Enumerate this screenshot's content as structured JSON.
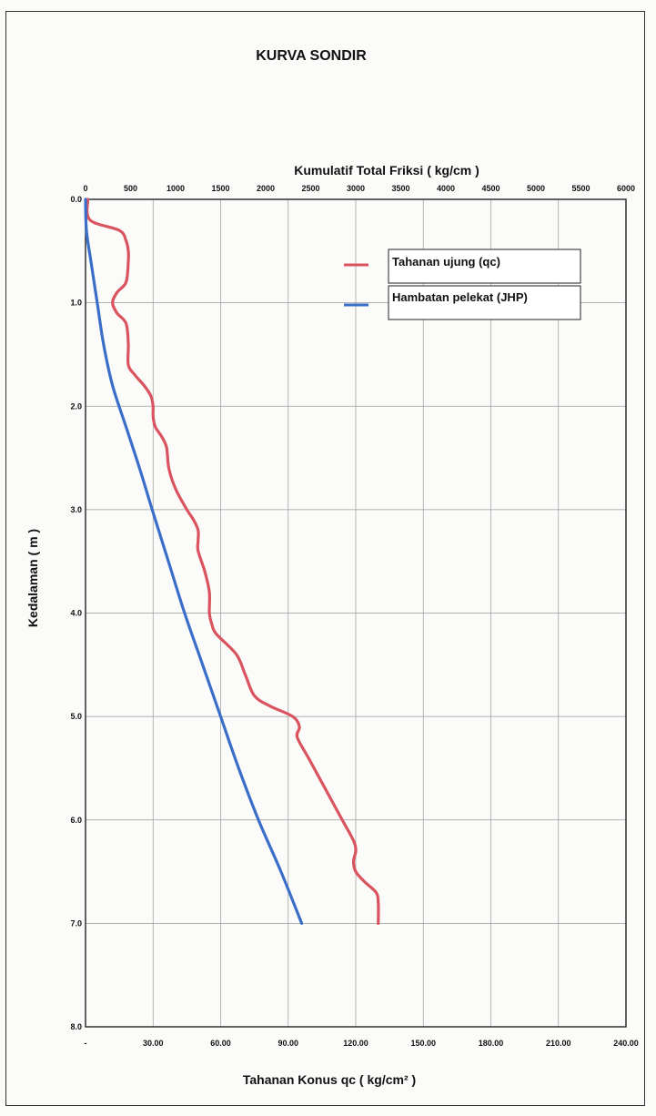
{
  "chart_data": {
    "type": "line",
    "title": "KURVA SONDIR",
    "top_axis_label": "Kumulatif Total Friksi  ( kg/cm )",
    "bottom_axis_label": "Tahanan Konus qc  ( kg/cm² )",
    "y_axis_label": "Kedalaman ( m )",
    "y_inverted": true,
    "grid": true,
    "legend_position": "top-right",
    "ylim": [
      0,
      8
    ],
    "qc_xlim": [
      0,
      240
    ],
    "jhp_xlim": [
      0,
      6000
    ],
    "y_ticks": [
      "0.0",
      "1.0",
      "2.0",
      "3.0",
      "4.0",
      "5.0",
      "6.0",
      "7.0",
      "8.0"
    ],
    "y_tick_values": [
      0,
      1,
      2,
      3,
      4,
      5,
      6,
      7,
      8
    ],
    "bottom_ticks": [
      "-",
      "30.00",
      "60.00",
      "90.00",
      "120.00",
      "150.00",
      "180.00",
      "210.00",
      "240.00"
    ],
    "bottom_tick_values": [
      0,
      30,
      60,
      90,
      120,
      150,
      180,
      210,
      240
    ],
    "top_ticks": [
      "0",
      "500",
      "1000",
      "1500",
      "2000",
      "2500",
      "3000",
      "3500",
      "4000",
      "4500",
      "5000",
      "5500",
      "6000"
    ],
    "top_tick_values": [
      0,
      500,
      1000,
      1500,
      2000,
      2500,
      3000,
      3500,
      4000,
      4500,
      5000,
      5500,
      6000
    ],
    "series": [
      {
        "name": "Tahanan ujung (qc)",
        "axis": "bottom",
        "color": "#d9545e",
        "depth": [
          0.0,
          0.2,
          0.3,
          0.4,
          0.5,
          0.6,
          0.8,
          0.9,
          1.0,
          1.1,
          1.2,
          1.4,
          1.6,
          1.7,
          1.8,
          1.9,
          2.0,
          2.1,
          2.2,
          2.3,
          2.4,
          2.6,
          2.8,
          3.0,
          3.1,
          3.2,
          3.3,
          3.4,
          3.6,
          3.8,
          4.0,
          4.1,
          4.2,
          4.4,
          4.6,
          4.8,
          4.9,
          5.0,
          5.1,
          5.2,
          5.4,
          5.6,
          5.8,
          6.0,
          6.2,
          6.3,
          6.4,
          6.5,
          6.6,
          6.7,
          6.8,
          7.0
        ],
        "values": [
          1,
          2,
          15,
          18,
          19,
          19,
          18,
          14,
          12,
          14,
          18,
          19,
          19,
          22,
          26,
          29,
          30,
          30,
          31,
          34,
          36,
          37,
          40,
          45,
          48,
          50,
          50,
          50,
          53,
          55,
          55,
          56,
          58,
          67,
          71,
          75,
          82,
          92,
          95,
          94,
          99,
          104,
          109,
          114,
          119,
          120,
          119,
          120,
          124,
          129,
          130,
          130
        ]
      },
      {
        "name": "Hambatan pelekat (JHP)",
        "axis": "top",
        "color": "#3a6ec8",
        "depth": [
          0.0,
          0.3,
          0.6,
          1.0,
          1.4,
          1.8,
          2.2,
          2.6,
          3.0,
          3.5,
          4.0,
          4.5,
          5.0,
          5.5,
          6.0,
          6.5,
          7.0
        ],
        "values": [
          0,
          10,
          60,
          130,
          200,
          300,
          450,
          600,
          740,
          920,
          1100,
          1300,
          1500,
          1700,
          1920,
          2170,
          2400
        ]
      }
    ]
  }
}
